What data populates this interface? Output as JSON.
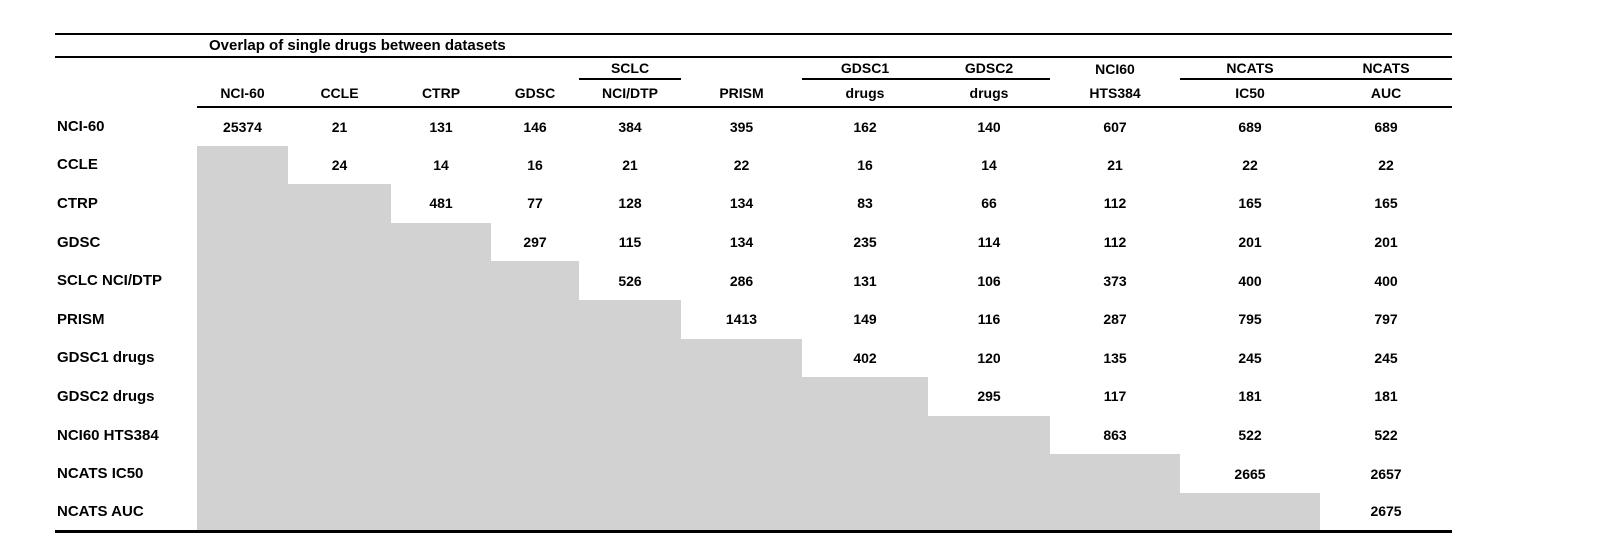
{
  "colors": {
    "shaded_cell": "#d2d2d2",
    "text": "#000000",
    "rules": "#000000",
    "background": "#ffffff"
  },
  "chart_data": {
    "type": "table",
    "title": "Overlap of single drugs between datasets",
    "shading": "lower_triangle_gray",
    "column_groups": [
      {
        "label": "",
        "underline": false
      },
      {
        "label": "",
        "underline": false
      },
      {
        "label": "",
        "underline": false
      },
      {
        "label": "",
        "underline": false
      },
      {
        "label": "SCLC",
        "underline": true
      },
      {
        "label": "",
        "underline": false
      },
      {
        "label": "GDSC1",
        "underline": true
      },
      {
        "label": "GDSC2",
        "underline": true
      },
      {
        "label": "NCI60",
        "underline": false
      },
      {
        "label": "NCATS",
        "underline": true
      },
      {
        "label": "NCATS",
        "underline": true
      }
    ],
    "column_headers": [
      "NCI-60",
      "CCLE",
      "CTRP",
      "GDSC",
      "NCI/DTP",
      "PRISM",
      "drugs",
      "drugs",
      "HTS384",
      "IC50",
      "AUC"
    ],
    "rows": [
      {
        "label": "NCI-60",
        "values": [
          25374,
          21,
          131,
          146,
          384,
          395,
          162,
          140,
          607,
          689,
          689
        ]
      },
      {
        "label": "CCLE",
        "values": [
          null,
          24,
          14,
          16,
          21,
          22,
          16,
          14,
          21,
          22,
          22
        ]
      },
      {
        "label": "CTRP",
        "values": [
          null,
          null,
          481,
          77,
          128,
          134,
          83,
          66,
          112,
          165,
          165
        ]
      },
      {
        "label": "GDSC",
        "values": [
          null,
          null,
          null,
          297,
          115,
          134,
          235,
          114,
          112,
          201,
          201
        ]
      },
      {
        "label": "SCLC NCI/DTP",
        "values": [
          null,
          null,
          null,
          null,
          526,
          286,
          131,
          106,
          373,
          400,
          400
        ]
      },
      {
        "label": "PRISM",
        "values": [
          null,
          null,
          null,
          null,
          null,
          1413,
          149,
          116,
          287,
          795,
          797
        ]
      },
      {
        "label": "GDSC1 drugs",
        "values": [
          null,
          null,
          null,
          null,
          null,
          null,
          402,
          120,
          135,
          245,
          245
        ]
      },
      {
        "label": "GDSC2 drugs",
        "values": [
          null,
          null,
          null,
          null,
          null,
          null,
          null,
          295,
          117,
          181,
          181
        ]
      },
      {
        "label": "NCI60 HTS384",
        "values": [
          null,
          null,
          null,
          null,
          null,
          null,
          null,
          null,
          863,
          522,
          522
        ]
      },
      {
        "label": "NCATS IC50",
        "values": [
          null,
          null,
          null,
          null,
          null,
          null,
          null,
          null,
          null,
          2665,
          2657
        ]
      },
      {
        "label": "NCATS AUC",
        "values": [
          null,
          null,
          null,
          null,
          null,
          null,
          null,
          null,
          null,
          null,
          2675
        ]
      }
    ]
  }
}
